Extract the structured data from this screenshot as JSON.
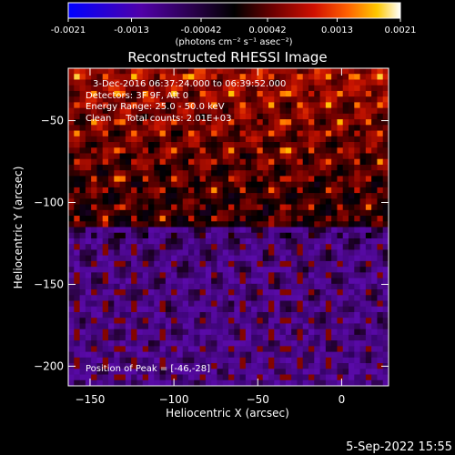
{
  "chart_data": {
    "type": "heatmap",
    "title": "Reconstructed RHESSI Image",
    "xlabel": "Heliocentric X (arcsec)",
    "ylabel": "Heliocentric Y (arcsec)",
    "xlim": [
      -163,
      28
    ],
    "ylim": [
      -212,
      -18
    ],
    "x_ticks": [
      -150,
      -100,
      -50,
      0
    ],
    "y_ticks": [
      -50,
      -100,
      -150,
      -200
    ],
    "colorbar": {
      "ticks": [
        "-0.0021",
        "-0.0013",
        "-0.00042",
        "0.00042",
        "0.0013",
        "0.0021"
      ],
      "range": [
        -0.0021,
        0.0021
      ],
      "units_line": "(photons cm⁻² s⁻¹ asec⁻²)"
    },
    "annotations": [
      "3-Dec-2016 06:37:24.000 to 06:39:52.000",
      "Detectors: 3F 9F, Att 0",
      "Energy Range: 25.0 - 50.0 keV",
      "Clean     Total counts: 2.01E+03"
    ],
    "peak_label": "Position of Peak = [-46,-28]",
    "peak": [
      -46,
      -28
    ],
    "colormap": [
      "#0000ff",
      "#4a00a0",
      "#200040",
      "#000000",
      "#600000",
      "#c00000",
      "#ff4000",
      "#ff9000",
      "#ffd000",
      "#ffffff"
    ]
  },
  "timestamp": "5-Sep-2022 15:55"
}
